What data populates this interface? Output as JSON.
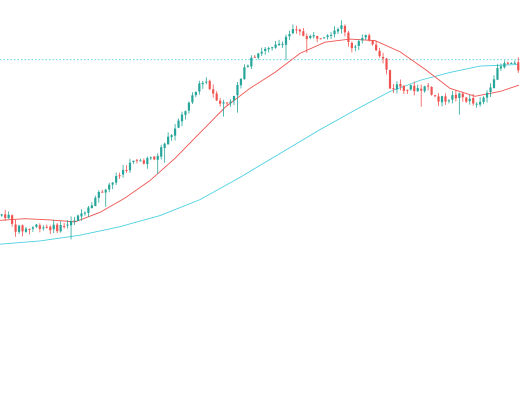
{
  "chart_data": {
    "type": "candlestick",
    "title": "",
    "xlabel": "",
    "ylabel": "",
    "ylim": [
      0,
      100
    ],
    "grid": false,
    "legend": "none",
    "colors": {
      "up": "#26a69a",
      "down": "#ef5350",
      "ma_fast": "#ef5350",
      "ma_slow": "#4dd0e1",
      "reference_line": "#4dd0e1",
      "background": "#ffffff"
    },
    "reference_line": {
      "value": 85,
      "style": "dotted"
    },
    "ma_fast": [
      [
        0,
        34.5
      ],
      [
        25,
        35.0
      ],
      [
        50,
        34.6
      ],
      [
        75,
        34.0
      ],
      [
        100,
        37.0
      ],
      [
        125,
        41.5
      ],
      [
        150,
        47.0
      ],
      [
        175,
        54.0
      ],
      [
        200,
        62.0
      ],
      [
        225,
        70.0
      ],
      [
        250,
        76.0
      ],
      [
        275,
        81.0
      ],
      [
        300,
        87.0
      ],
      [
        325,
        90.5
      ],
      [
        350,
        91.5
      ],
      [
        375,
        91.0
      ],
      [
        400,
        87.5
      ],
      [
        425,
        82.0
      ],
      [
        450,
        76.0
      ],
      [
        475,
        73.5
      ],
      [
        500,
        75.0
      ],
      [
        519,
        77.0
      ]
    ],
    "ma_slow": [
      [
        0,
        27.0
      ],
      [
        40,
        28.0
      ],
      [
        80,
        29.8
      ],
      [
        120,
        32.5
      ],
      [
        160,
        36.0
      ],
      [
        200,
        41.0
      ],
      [
        240,
        48.0
      ],
      [
        280,
        55.5
      ],
      [
        320,
        63.0
      ],
      [
        360,
        70.0
      ],
      [
        390,
        75.0
      ],
      [
        420,
        78.5
      ],
      [
        450,
        81.0
      ],
      [
        480,
        83.0
      ],
      [
        519,
        83.5
      ]
    ],
    "candles": {
      "count": 150,
      "points": [
        [
          0,
          36
        ],
        [
          4,
          36.5
        ],
        [
          9,
          35.5
        ],
        [
          12,
          33
        ],
        [
          15,
          32
        ],
        [
          22,
          31.5
        ],
        [
          30,
          32
        ],
        [
          38,
          33
        ],
        [
          46,
          32.5
        ],
        [
          55,
          32
        ],
        [
          65,
          33
        ],
        [
          75,
          34
        ],
        [
          85,
          38
        ],
        [
          95,
          41.5
        ],
        [
          105,
          45
        ],
        [
          115,
          47
        ],
        [
          125,
          51
        ],
        [
          135,
          53
        ],
        [
          145,
          53.5
        ],
        [
          155,
          53.5
        ],
        [
          165,
          59
        ],
        [
          175,
          63
        ],
        [
          185,
          69
        ],
        [
          195,
          74
        ],
        [
          200,
          78
        ],
        [
          205,
          79
        ],
        [
          210,
          76
        ],
        [
          215,
          74
        ],
        [
          222,
          71
        ],
        [
          230,
          72
        ],
        [
          240,
          78
        ],
        [
          250,
          86
        ],
        [
          262,
          88
        ],
        [
          272,
          88
        ],
        [
          282,
          91
        ],
        [
          292,
          94
        ],
        [
          302,
          93
        ],
        [
          312,
          92
        ],
        [
          322,
          93
        ],
        [
          332,
          94
        ],
        [
          340,
          96
        ],
        [
          347,
          92
        ],
        [
          352,
          89
        ],
        [
          360,
          91
        ],
        [
          370,
          92
        ],
        [
          378,
          88
        ],
        [
          385,
          84
        ],
        [
          390,
          76
        ],
        [
          398,
          77
        ],
        [
          408,
          76
        ],
        [
          418,
          76
        ],
        [
          428,
          76.5
        ],
        [
          438,
          72
        ],
        [
          448,
          73
        ],
        [
          458,
          73.5
        ],
        [
          468,
          72.5
        ],
        [
          478,
          70
        ],
        [
          486,
          74
        ],
        [
          494,
          80
        ],
        [
          502,
          83
        ],
        [
          510,
          84
        ],
        [
          519,
          82
        ]
      ]
    }
  }
}
